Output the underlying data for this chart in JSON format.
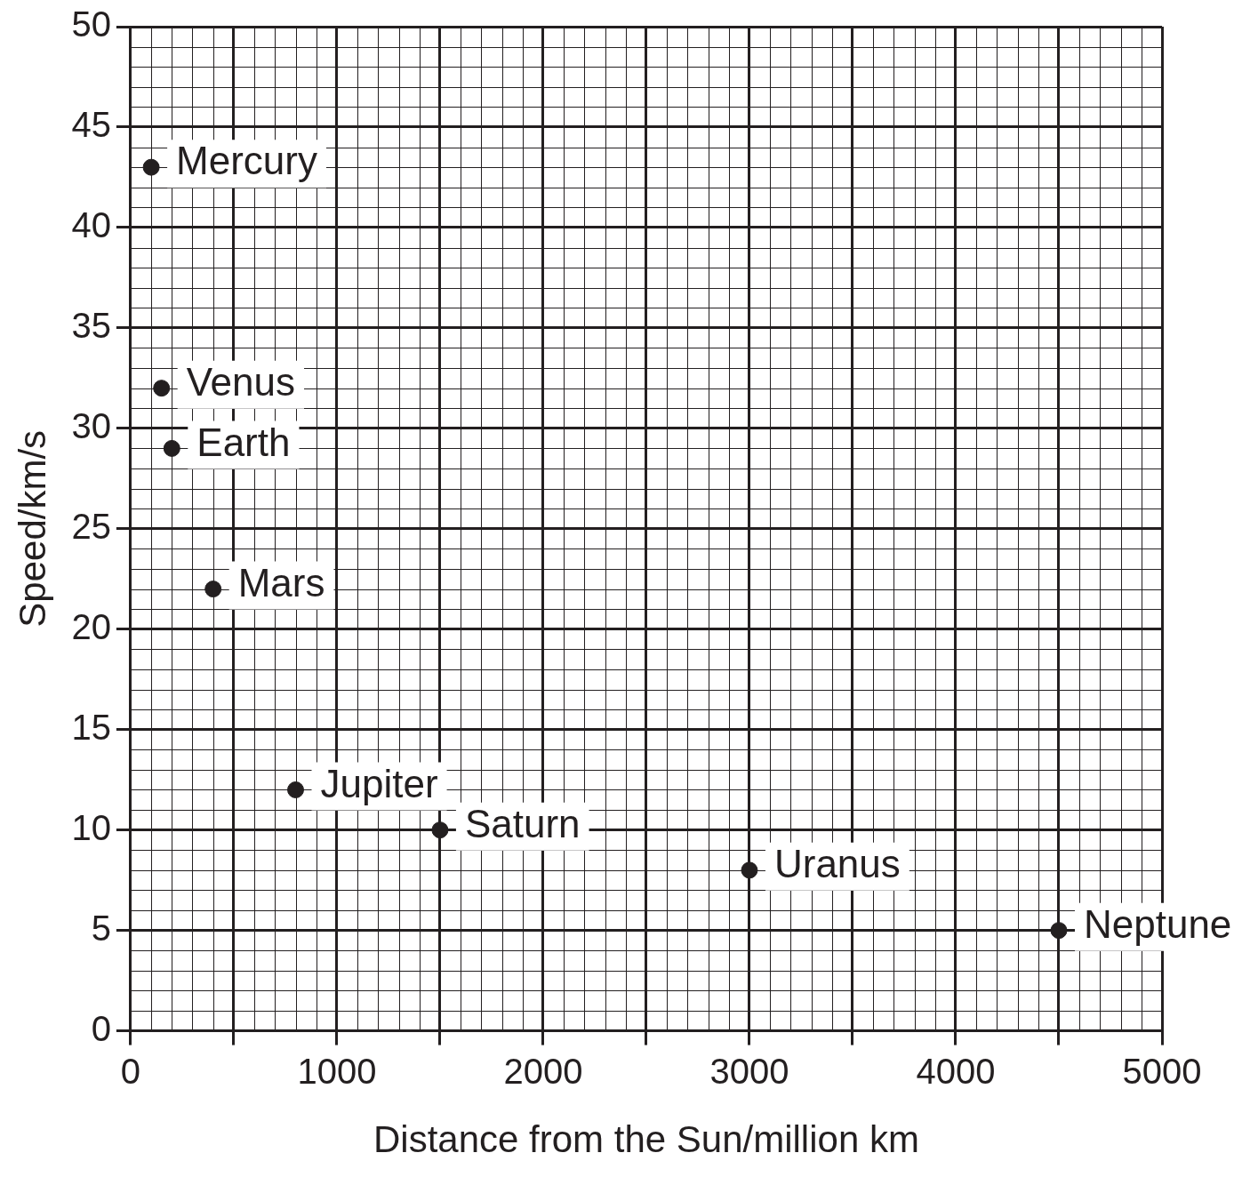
{
  "chart_data": {
    "type": "scatter",
    "xlabel": "Distance from the Sun/million km",
    "ylabel": "Speed/km/s",
    "x": [
      100,
      150,
      200,
      400,
      800,
      1500,
      3000,
      4500
    ],
    "values": [
      43,
      32,
      29,
      22,
      12,
      10,
      8,
      5
    ],
    "color": "#231f20",
    "marker": "circle",
    "grid": true,
    "legend": false,
    "xlim": [
      0,
      5000
    ],
    "ylim": [
      0,
      50
    ],
    "xticks": [
      0,
      {
        "value": 500,
        "label": null
      },
      1000,
      {
        "value": 1500,
        "label": null
      },
      2000,
      {
        "value": 2500,
        "label": null
      },
      3000,
      {
        "value": 3500,
        "label": null
      },
      4000,
      {
        "value": 4500,
        "label": null
      },
      5000
    ],
    "yticks": [
      0,
      5,
      10,
      15,
      20,
      25,
      30,
      35,
      40,
      45,
      50
    ],
    "annotations": [
      {
        "text": "Mercury",
        "x": 100,
        "y": 43
      },
      {
        "text": "Venus",
        "x": 150,
        "y": 32
      },
      {
        "text": "Earth",
        "x": 200,
        "y": 29
      },
      {
        "text": "Mars",
        "x": 400,
        "y": 22
      },
      {
        "text": "Jupiter",
        "x": 800,
        "y": 12
      },
      {
        "text": "Saturn",
        "x": 1500,
        "y": 10
      },
      {
        "text": "Uranus",
        "x": 3000,
        "y": 8
      },
      {
        "text": "Neptune",
        "x": 4500,
        "y": 5
      }
    ]
  }
}
